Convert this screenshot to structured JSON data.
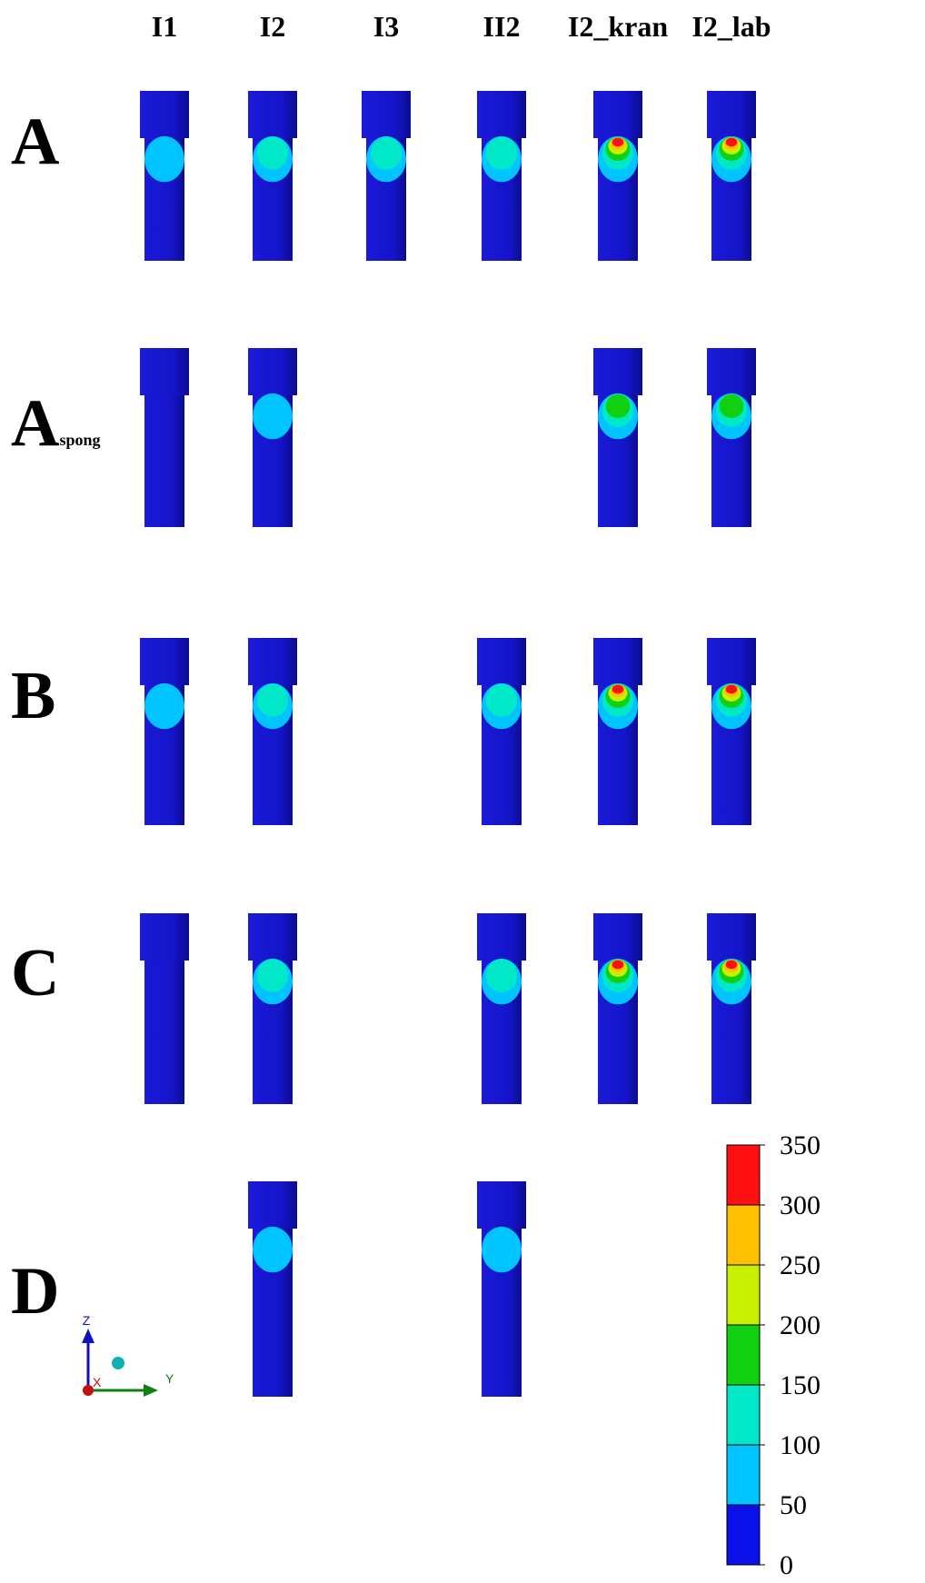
{
  "columns": [
    "I1",
    "I2",
    "I3",
    "II2",
    "I2_kran",
    "I2_lab"
  ],
  "rows": [
    {
      "label": "A",
      "peaks": [
        100,
        150,
        150,
        150,
        350,
        350
      ]
    },
    {
      "label": "A",
      "subscript": "spong",
      "peaks": [
        50,
        100,
        null,
        null,
        200,
        200
      ]
    },
    {
      "label": "B",
      "peaks": [
        100,
        150,
        null,
        150,
        350,
        350
      ]
    },
    {
      "label": "C",
      "peaks": [
        50,
        150,
        null,
        150,
        350,
        350
      ]
    },
    {
      "label": "D",
      "peaks": [
        null,
        100,
        null,
        100,
        null,
        null
      ]
    }
  ],
  "colorbar": {
    "ticks": [
      0,
      50,
      100,
      150,
      200,
      250,
      300,
      350
    ],
    "colors": [
      "#0a10e8",
      "#00c4ff",
      "#00e8c8",
      "#10d010",
      "#c8f000",
      "#ffc000",
      "#ff1010"
    ]
  },
  "axes": {
    "z": "Z",
    "y": "Y",
    "x": "X"
  }
}
